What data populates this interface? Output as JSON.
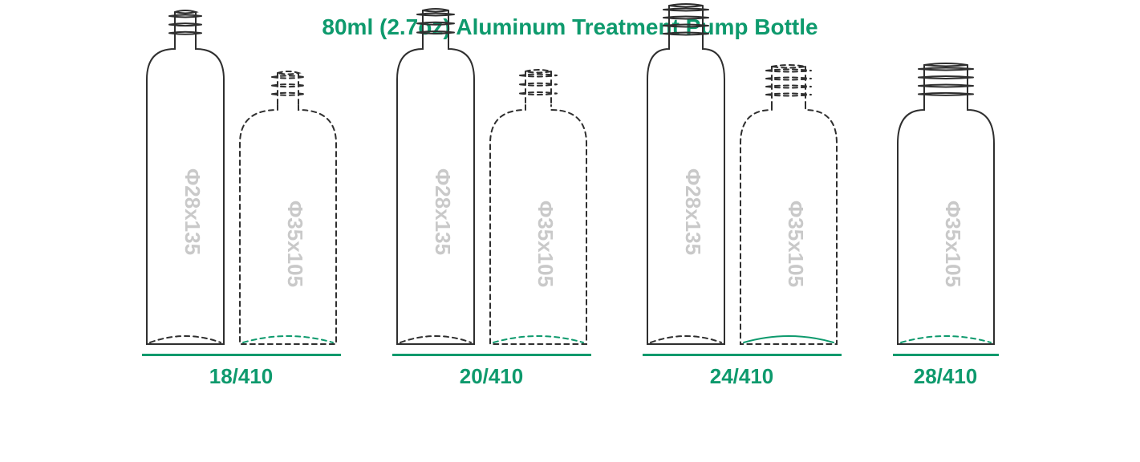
{
  "title": "80ml (2.7oz) Aluminum Treatment Pump Bottle",
  "colors": {
    "accent": "#0e9a6d",
    "outline_dark": "#2f2f2f",
    "outline_dashed": "#2f2f2f",
    "dashed_accent": "#0e9a6d",
    "label_gray": "#c9c9c9",
    "bg": "#ffffff"
  },
  "bottle_specs": {
    "tall": {
      "label": "Φ28x135",
      "body_w": 96,
      "body_h": 330,
      "shoulder_h": 44
    },
    "short": {
      "label": "Φ35x105",
      "body_w": 120,
      "body_h": 250,
      "shoulder_h": 48
    }
  },
  "neck_specs": {
    "18/410": {
      "outer_w": 40,
      "thread_turns": 3,
      "neck_h": 42
    },
    "20/410": {
      "outer_w": 46,
      "thread_turns": 3,
      "neck_h": 44
    },
    "24/410": {
      "outer_w": 56,
      "thread_turns": 4,
      "neck_h": 50
    },
    "28/410": {
      "outer_w": 68,
      "thread_turns": 4,
      "neck_h": 52
    }
  },
  "groups": [
    {
      "size": "18/410",
      "bottles": [
        {
          "spec": "tall",
          "neck": "18/410",
          "outline": "solid",
          "base_arc": "dashed_dark"
        },
        {
          "spec": "short",
          "neck": "18/410",
          "outline": "dashed",
          "base_arc": "dashed_accent"
        }
      ]
    },
    {
      "size": "20/410",
      "bottles": [
        {
          "spec": "tall",
          "neck": "20/410",
          "outline": "solid",
          "base_arc": "dashed_dark"
        },
        {
          "spec": "short",
          "neck": "20/410",
          "outline": "dashed",
          "base_arc": "dashed_accent"
        }
      ]
    },
    {
      "size": "24/410",
      "bottles": [
        {
          "spec": "tall",
          "neck": "24/410",
          "outline": "solid",
          "base_arc": "dashed_dark"
        },
        {
          "spec": "short",
          "neck": "24/410",
          "outline": "dashed",
          "base_arc": "solid_accent"
        }
      ]
    },
    {
      "size": "28/410",
      "bottles": [
        {
          "spec": "short",
          "neck": "28/410",
          "outline": "solid",
          "base_arc": "dashed_accent"
        }
      ]
    }
  ],
  "stroke_width": 2,
  "dash_pattern": "6 5"
}
